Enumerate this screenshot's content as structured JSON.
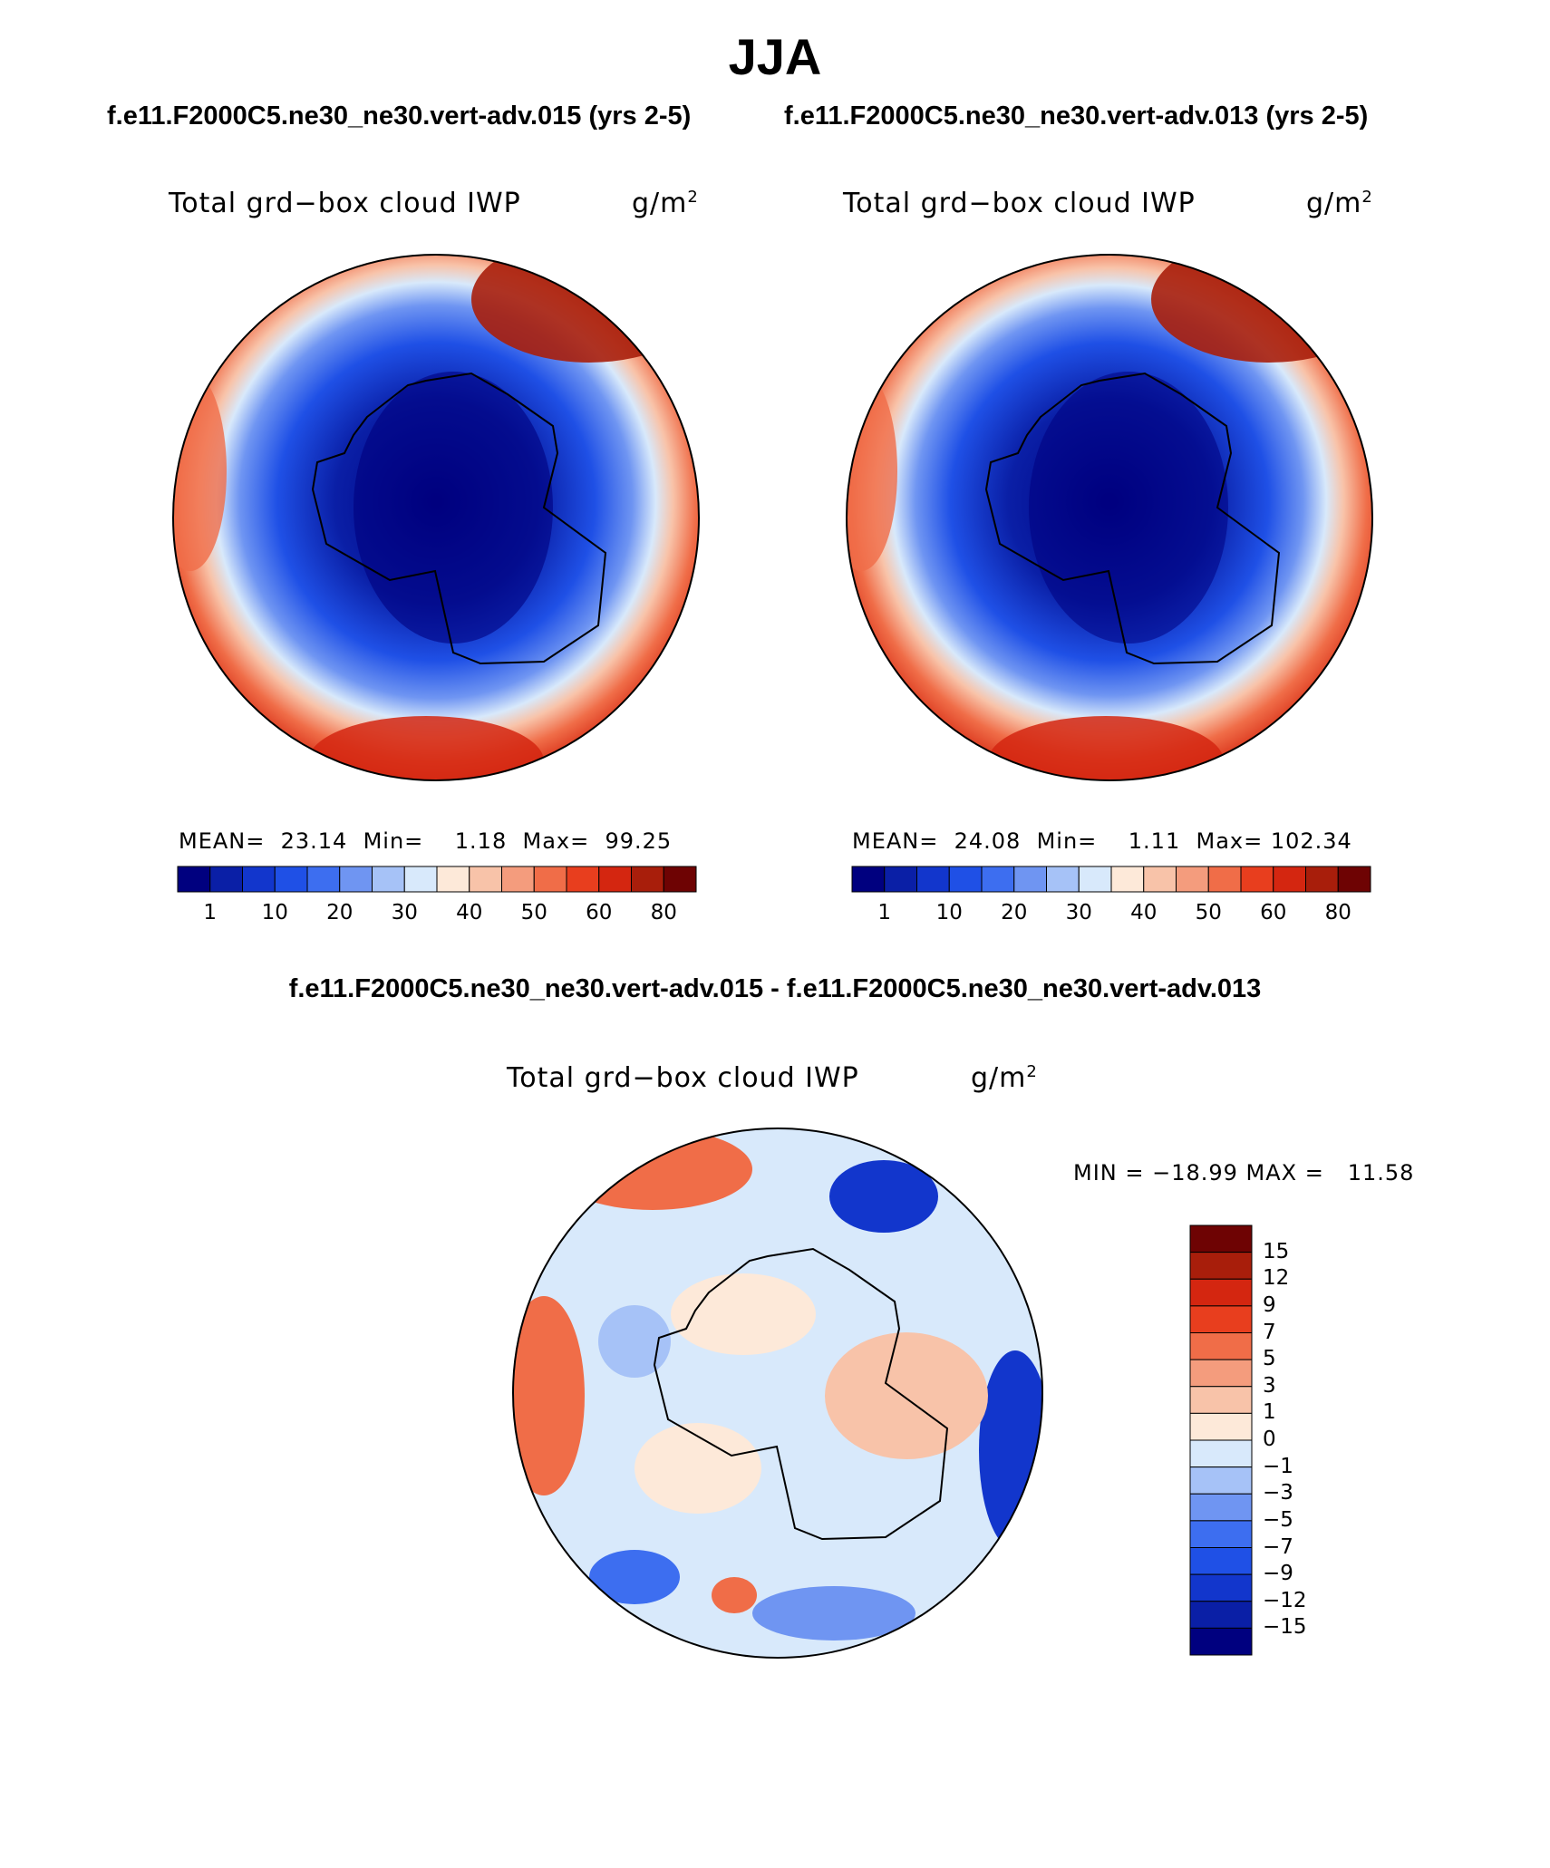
{
  "title": "JJA",
  "left_subtitle": "f.e11.F2000C5.ne30_ne30.vert-adv.015 (yrs 2-5)",
  "right_subtitle": "f.e11.F2000C5.ne30_ne30.vert-adv.013 (yrs 2-5)",
  "diff_subtitle": "f.e11.F2000C5.ne30_ne30.vert-adv.015 - f.e11.F2000C5.ne30_ne30.vert-adv.013",
  "panels": {
    "left": {
      "variable": "Total grd−box cloud IWP",
      "units": "g/m",
      "units_sup": "2",
      "stats": "MEAN=  23.14  Min=    1.18  Max=  99.25"
    },
    "right": {
      "variable": "Total grd−box cloud IWP",
      "units": "g/m",
      "units_sup": "2",
      "stats": "MEAN=  24.08  Min=    1.11  Max= 102.34"
    },
    "diff": {
      "variable": "Total grd−box cloud IWP",
      "units": "g/m",
      "units_sup": "2",
      "stats": "MIN = −18.99 MAX =   11.58"
    }
  },
  "colorbar_abs": {
    "colors": [
      "#00007f",
      "#0a1fa6",
      "#1236cc",
      "#1f50e6",
      "#3d6ef0",
      "#6f95f2",
      "#a6c2f7",
      "#d8e9fb",
      "#fde9d9",
      "#f8c3a9",
      "#f49c7d",
      "#f06d48",
      "#e83e1e",
      "#d42610",
      "#a81e0b",
      "#6e0303"
    ],
    "ticks": [
      "1",
      "10",
      "20",
      "30",
      "40",
      "50",
      "60",
      "80"
    ]
  },
  "colorbar_diff": {
    "colors": [
      "#00007f",
      "#0a1fa6",
      "#1236cc",
      "#1f50e6",
      "#3d6ef0",
      "#6f95f2",
      "#a6c2f7",
      "#d8e9fb",
      "#fde9d9",
      "#f8c3a9",
      "#f49c7d",
      "#f06d48",
      "#e83e1e",
      "#d42610",
      "#a81e0b",
      "#6e0303"
    ],
    "ticks": [
      "15",
      "12",
      "9",
      "7",
      "5",
      "3",
      "1",
      "0",
      "−1",
      "−3",
      "−5",
      "−7",
      "−9",
      "−12",
      "−15"
    ]
  }
}
